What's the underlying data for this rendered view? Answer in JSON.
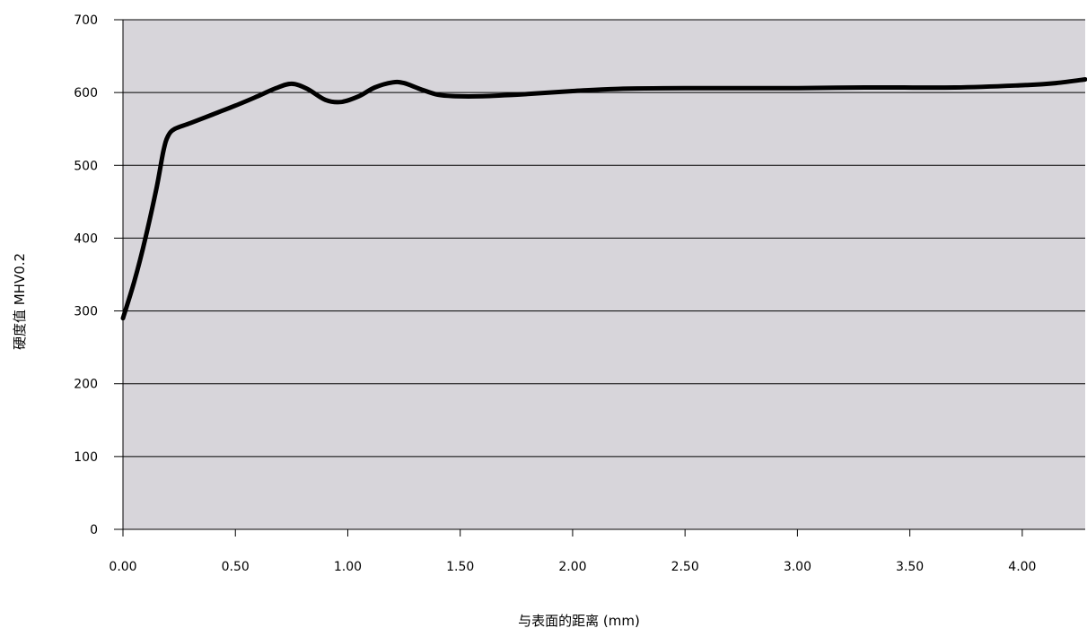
{
  "chart_data": {
    "type": "line",
    "title": "",
    "xlabel": "与表面的距离 (mm)",
    "ylabel": "硬度值 MHV0.2",
    "xlim": [
      0,
      4.28
    ],
    "ylim": [
      0,
      700
    ],
    "x_ticks": [
      0,
      0.5,
      1.0,
      1.5,
      2.0,
      2.5,
      3.0,
      3.5,
      4.0
    ],
    "x_tick_labels": [
      "0.00",
      "0.50",
      "1.00",
      "1.50",
      "2.00",
      "2.50",
      "3.00",
      "3.50",
      "4.00"
    ],
    "y_ticks": [
      0,
      100,
      200,
      300,
      400,
      500,
      600,
      700
    ],
    "y_tick_labels": [
      "0",
      "100",
      "200",
      "300",
      "400",
      "500",
      "600",
      "700"
    ],
    "grid": "horizontal",
    "legend": "none",
    "colors": {
      "plot_background": "#d7d5da",
      "line": "#000000",
      "grid": "#000000"
    },
    "series": [
      {
        "x": [
          0,
          0.05,
          0.1,
          0.15,
          0.18,
          0.2,
          0.23,
          0.3,
          0.4,
          0.5,
          0.6,
          0.68,
          0.75,
          0.82,
          0.9,
          0.97,
          1.05,
          1.12,
          1.2,
          1.25,
          1.32,
          1.4,
          1.48,
          1.6,
          1.8,
          2.0,
          2.2,
          2.5,
          3.0,
          3.3,
          3.7,
          4.0,
          4.15,
          4.28
        ],
        "y": [
          290,
          340,
          400,
          470,
          520,
          540,
          550,
          558,
          570,
          582,
          595,
          606,
          612,
          605,
          590,
          587,
          595,
          607,
          614,
          613,
          605,
          597,
          595,
          595,
          598,
          602,
          605,
          606,
          606,
          607,
          607,
          610,
          613,
          618
        ]
      }
    ]
  }
}
